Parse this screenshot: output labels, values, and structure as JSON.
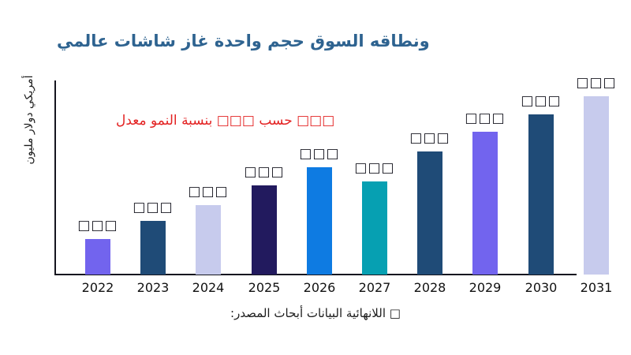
{
  "page": {
    "title": "عالمي شاشات غاز واحدة حجم السوق ونطاقه",
    "growth_annotation": "معدل النمو بنسبة □□□ حسب □□□",
    "source_line": "المصدر: أبحاث البيانات اللانهائية □"
  },
  "colors": {
    "title_text": "#2e6390",
    "annotation_red": "#e32222",
    "axis": "#15151f",
    "violet": "#7264ee",
    "steel_blue": "#1f4b77",
    "lavender": "#c7cbed",
    "dark_indigo": "#221a5e",
    "bright_blue": "#0e7be2",
    "teal": "#06a0b2"
  },
  "chart_data": {
    "type": "bar",
    "title": "عالمي شاشات غاز واحدة حجم السوق ونطاقه",
    "xlabel": "",
    "ylabel": "مليون دولار أمريكي",
    "categories": [
      "2022",
      "2023",
      "2024",
      "2025",
      "2026",
      "2027",
      "2028",
      "2029",
      "2030",
      "2031"
    ],
    "values_relative_pct": [
      20,
      30,
      39,
      50,
      60,
      52,
      69,
      80,
      90,
      100
    ],
    "bar_value_labels": [
      "□□□",
      "□□□",
      "□□□",
      "□□□",
      "□□□",
      "□□□",
      "□□□",
      "□□□",
      "□□□",
      "□□□"
    ],
    "bar_colors": [
      "#7264ee",
      "#1f4b77",
      "#c7cbed",
      "#221a5e",
      "#0e7be2",
      "#06a0b2",
      "#1f4b77",
      "#7264ee",
      "#1f4b77",
      "#c7cbed"
    ],
    "annotation": "معدل النمو بنسبة □□□ حسب □□□",
    "source": "المصدر: أبحاث البيانات اللانهائية □",
    "legend": false,
    "gridlines": false,
    "y_tick_labels": [],
    "notes": "values hidden in source image as placeholder boxes; heights estimated relative to tallest bar (2031 = 100)"
  }
}
